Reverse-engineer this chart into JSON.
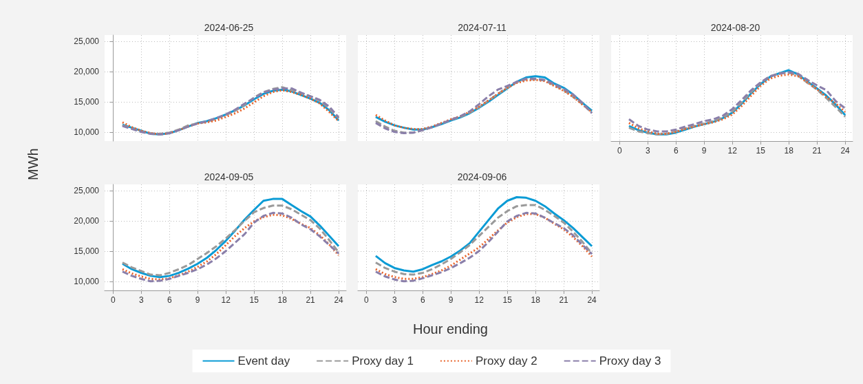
{
  "chart_data": [
    {
      "type": "line",
      "title": "2024-06-25",
      "xlabel": "Hour ending",
      "ylabel": "MWh",
      "legend": "bottom",
      "grid": true,
      "tick_labels": "y",
      "x": [
        1,
        2,
        3,
        4,
        5,
        6,
        7,
        8,
        9,
        10,
        11,
        12,
        13,
        14,
        15,
        16,
        17,
        18,
        19,
        20,
        21,
        22,
        23,
        24
      ],
      "xlim": [
        -0.9,
        24.8
      ],
      "xticks": [
        0,
        3,
        6,
        9,
        12,
        15,
        18,
        21,
        24
      ],
      "ylim": [
        8500,
        26000
      ],
      "yticks": [
        {
          "value": 10000,
          "label": "10,000"
        },
        {
          "value": 15000,
          "label": "15,000"
        },
        {
          "value": 20000,
          "label": "20,000"
        },
        {
          "value": 25000,
          "label": "25,000"
        }
      ],
      "series": [
        {
          "name": "Event day",
          "color": "#0a9bd5",
          "line_style": "solid",
          "values": [
            11200,
            10700,
            10200,
            9700,
            9600,
            9800,
            10300,
            10900,
            11500,
            11800,
            12300,
            12900,
            13600,
            14400,
            15400,
            16300,
            16800,
            17000,
            16700,
            16100,
            15500,
            14800,
            13600,
            11900
          ]
        },
        {
          "name": "Proxy day 1",
          "color": "#9a9a9a",
          "line_style": "dashed",
          "values": [
            11100,
            10600,
            10100,
            9800,
            9700,
            9900,
            10400,
            11100,
            11400,
            11700,
            12200,
            12800,
            13500,
            14500,
            15700,
            16600,
            17100,
            17400,
            16900,
            16400,
            15900,
            15200,
            13900,
            12300
          ]
        },
        {
          "name": "Proxy day 2",
          "color": "#e8632a",
          "line_style": "dotted",
          "values": [
            11600,
            10800,
            10200,
            9800,
            9600,
            9800,
            10300,
            10900,
            11400,
            11600,
            11900,
            12500,
            13100,
            13900,
            14900,
            15900,
            16600,
            16900,
            16600,
            16100,
            15500,
            14700,
            13300,
            11800
          ]
        },
        {
          "name": "Proxy day 3",
          "color": "#8a7faa",
          "line_style": "dashed",
          "values": [
            11000,
            10500,
            10000,
            9700,
            9600,
            9800,
            10300,
            10900,
            11400,
            11800,
            12300,
            12900,
            13700,
            14700,
            15600,
            16500,
            17000,
            17200,
            17200,
            16500,
            15900,
            15300,
            14200,
            12400
          ]
        }
      ]
    },
    {
      "type": "line",
      "title": "2024-07-11",
      "grid": true,
      "tick_labels": false,
      "x": [
        1,
        2,
        3,
        4,
        5,
        6,
        7,
        8,
        9,
        10,
        11,
        12,
        13,
        14,
        15,
        16,
        17,
        18,
        19,
        20,
        21,
        22,
        23,
        24
      ],
      "xlim": [
        -0.9,
        24.8
      ],
      "xticks": [
        0,
        3,
        6,
        9,
        12,
        15,
        18,
        21,
        24
      ],
      "ylim": [
        8500,
        26000
      ],
      "yticks": [
        10000,
        15000,
        20000,
        25000
      ],
      "series": [
        {
          "color": "#0a9bd5",
          "line_style": "solid",
          "values": [
            12500,
            11700,
            11100,
            10700,
            10400,
            10400,
            10800,
            11300,
            11900,
            12400,
            13100,
            14000,
            15000,
            16100,
            17200,
            18300,
            19000,
            19200,
            19000,
            18000,
            17300,
            16200,
            14800,
            13500
          ]
        },
        {
          "color": "#9a9a9a",
          "line_style": "dashed",
          "values": [
            11800,
            10900,
            10200,
            9900,
            9900,
            10300,
            10800,
            11400,
            12000,
            12500,
            13200,
            14100,
            15200,
            16300,
            17300,
            18200,
            18700,
            18700,
            18500,
            17700,
            16900,
            15800,
            14600,
            13200
          ]
        },
        {
          "color": "#e8632a",
          "line_style": "dotted",
          "values": [
            12800,
            11900,
            11100,
            10700,
            10500,
            10500,
            10900,
            11500,
            12100,
            12600,
            13300,
            14200,
            15200,
            16300,
            17300,
            18100,
            18500,
            18600,
            18400,
            17600,
            16800,
            15800,
            14500,
            13300
          ]
        },
        {
          "color": "#8a7faa",
          "line_style": "dashed",
          "values": [
            11500,
            10600,
            10000,
            9800,
            9900,
            10300,
            10800,
            11400,
            12000,
            12600,
            13400,
            14600,
            15900,
            17000,
            17600,
            18300,
            18800,
            18800,
            18600,
            17900,
            17100,
            16200,
            14800,
            13100
          ]
        }
      ]
    },
    {
      "type": "line",
      "title": "2024-08-20",
      "grid": true,
      "tick_labels": "x",
      "x": [
        1,
        2,
        3,
        4,
        5,
        6,
        7,
        8,
        9,
        10,
        11,
        12,
        13,
        14,
        15,
        16,
        17,
        18,
        19,
        20,
        21,
        22,
        23,
        24
      ],
      "xlim": [
        -0.9,
        24.8
      ],
      "xticks": [
        0,
        3,
        6,
        9,
        12,
        15,
        18,
        21,
        24
      ],
      "ylim": [
        8500,
        26000
      ],
      "yticks": [
        10000,
        15000,
        20000,
        25000
      ],
      "series": [
        {
          "color": "#0a9bd5",
          "line_style": "solid",
          "values": [
            11000,
            10300,
            9900,
            9600,
            9600,
            9900,
            10400,
            10900,
            11300,
            11700,
            12300,
            13200,
            14700,
            16400,
            17900,
            19100,
            19700,
            20200,
            19500,
            18300,
            17200,
            16000,
            14500,
            12800
          ]
        },
        {
          "color": "#9a9a9a",
          "line_style": "dashed",
          "values": [
            10700,
            10100,
            9800,
            9600,
            9700,
            10100,
            10600,
            11000,
            11400,
            11800,
            12400,
            13400,
            14900,
            16600,
            18100,
            19200,
            19700,
            19800,
            19300,
            18100,
            17000,
            15600,
            14100,
            12500
          ]
        },
        {
          "color": "#e8632a",
          "line_style": "dotted",
          "values": [
            11500,
            10600,
            10100,
            9700,
            9700,
            10000,
            10500,
            10900,
            11300,
            11600,
            12100,
            12900,
            14300,
            16000,
            17600,
            18800,
            19300,
            19500,
            19200,
            18200,
            17100,
            15800,
            14700,
            13300
          ]
        },
        {
          "color": "#8a7faa",
          "line_style": "dashed",
          "values": [
            12100,
            11000,
            10400,
            10100,
            10100,
            10400,
            10900,
            11300,
            11800,
            12100,
            12700,
            13800,
            15300,
            16900,
            18200,
            19200,
            19600,
            19900,
            19600,
            18600,
            17700,
            16900,
            15100,
            13900
          ]
        }
      ]
    },
    {
      "type": "line",
      "title": "2024-09-05",
      "grid": true,
      "x": [
        1,
        2,
        3,
        4,
        5,
        6,
        7,
        8,
        9,
        10,
        11,
        12,
        13,
        14,
        15,
        16,
        17,
        18,
        19,
        20,
        21,
        22,
        23,
        24
      ],
      "xlim": [
        -0.9,
        24.8
      ],
      "xticks": [
        0,
        3,
        6,
        9,
        12,
        15,
        18,
        21,
        24
      ],
      "ylim": [
        8500,
        26000
      ],
      "yticks": [
        {
          "value": 10000,
          "label": "10,000"
        },
        {
          "value": 15000,
          "label": "15,000"
        },
        {
          "value": 20000,
          "label": "20,000"
        },
        {
          "value": 25000,
          "label": "25,000"
        }
      ],
      "series": [
        {
          "color": "#0a9bd5",
          "line_style": "solid",
          "values": [
            12900,
            12000,
            11400,
            10900,
            10700,
            10900,
            11400,
            12100,
            12900,
            13900,
            15200,
            16700,
            18400,
            20200,
            21800,
            23300,
            23600,
            23600,
            22600,
            21600,
            20700,
            19200,
            17500,
            15800
          ]
        },
        {
          "color": "#9a9a9a",
          "line_style": "dashed",
          "values": [
            13100,
            12300,
            11700,
            11100,
            11000,
            11400,
            12000,
            12700,
            13700,
            14700,
            15800,
            17100,
            18500,
            20000,
            21400,
            22100,
            22500,
            22500,
            21900,
            21000,
            20100,
            18700,
            16800,
            14800
          ]
        },
        {
          "color": "#e8632a",
          "line_style": "dotted",
          "values": [
            12000,
            11300,
            10800,
            10400,
            10300,
            10500,
            11000,
            11600,
            12400,
            13300,
            14500,
            16000,
            17500,
            18800,
            19900,
            20600,
            21000,
            20900,
            20300,
            19500,
            18800,
            17600,
            16100,
            14300
          ]
        },
        {
          "color": "#8a7faa",
          "line_style": "dashed",
          "values": [
            11600,
            10900,
            10400,
            10000,
            10100,
            10400,
            10900,
            11400,
            12000,
            12800,
            13800,
            15000,
            16400,
            17800,
            19700,
            20800,
            21300,
            21200,
            20500,
            19400,
            18600,
            17400,
            16000,
            14600
          ]
        }
      ]
    },
    {
      "type": "line",
      "title": "2024-09-06",
      "grid": true,
      "tick_labels": "x",
      "x": [
        1,
        2,
        3,
        4,
        5,
        6,
        7,
        8,
        9,
        10,
        11,
        12,
        13,
        14,
        15,
        16,
        17,
        18,
        19,
        20,
        21,
        22,
        23,
        24
      ],
      "xlim": [
        -0.9,
        24.8
      ],
      "xticks": [
        0,
        3,
        6,
        9,
        12,
        15,
        18,
        21,
        24
      ],
      "ylim": [
        8500,
        26000
      ],
      "yticks": [
        10000,
        15000,
        20000,
        25000
      ],
      "series": [
        {
          "color": "#0a9bd5",
          "line_style": "solid",
          "values": [
            14200,
            13000,
            12200,
            11800,
            11600,
            12000,
            12700,
            13300,
            14100,
            15100,
            16300,
            18200,
            20100,
            22000,
            23300,
            23900,
            23800,
            23300,
            22400,
            21200,
            20100,
            18800,
            17300,
            15800
          ]
        },
        {
          "color": "#9a9a9a",
          "line_style": "dashed",
          "values": [
            13100,
            12200,
            11600,
            11200,
            11100,
            11400,
            12000,
            12800,
            13700,
            14800,
            16000,
            17500,
            19000,
            20500,
            21600,
            22400,
            22600,
            22600,
            21800,
            20800,
            19700,
            18200,
            16500,
            14600
          ]
        },
        {
          "color": "#e8632a",
          "line_style": "dotted",
          "values": [
            12000,
            11200,
            10700,
            10400,
            10400,
            10700,
            11200,
            11800,
            12600,
            13600,
            14600,
            15600,
            17000,
            18400,
            19700,
            20600,
            21100,
            21100,
            20500,
            19500,
            18600,
            17300,
            15800,
            14100
          ]
        },
        {
          "color": "#8a7faa",
          "line_style": "dashed",
          "values": [
            11600,
            10800,
            10300,
            10000,
            10100,
            10500,
            11000,
            11500,
            12200,
            13000,
            13900,
            15000,
            16500,
            18200,
            19900,
            20800,
            21300,
            21200,
            20500,
            19600,
            18800,
            17600,
            16000,
            14500
          ]
        }
      ]
    }
  ]
}
